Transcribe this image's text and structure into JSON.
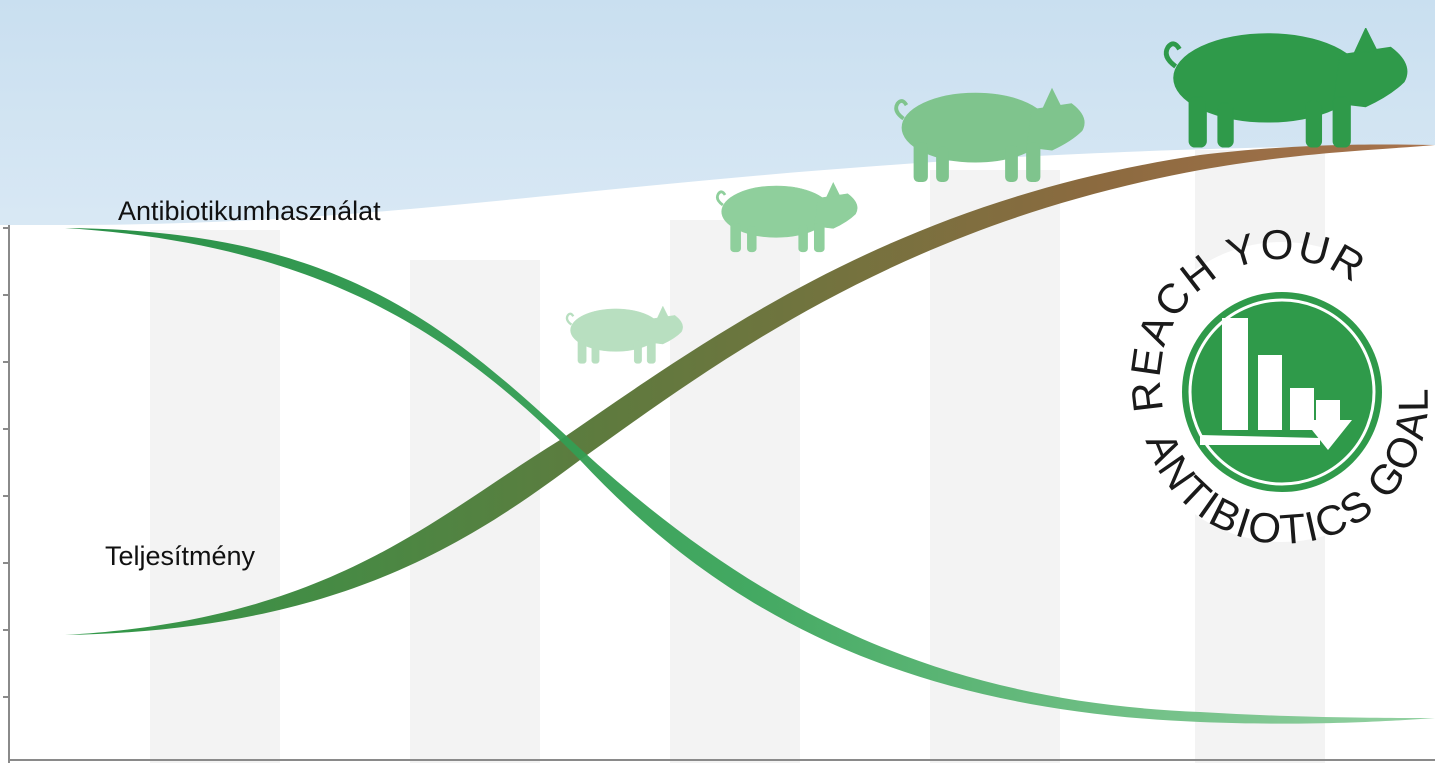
{
  "labels": {
    "antibiotic_use": "Antibiotikumhasználat",
    "performance": "Teljesítmény"
  },
  "badge": {
    "top_text": "REACH YOUR",
    "bottom_text": "ANTIBIOTICS GOAL"
  }
}
